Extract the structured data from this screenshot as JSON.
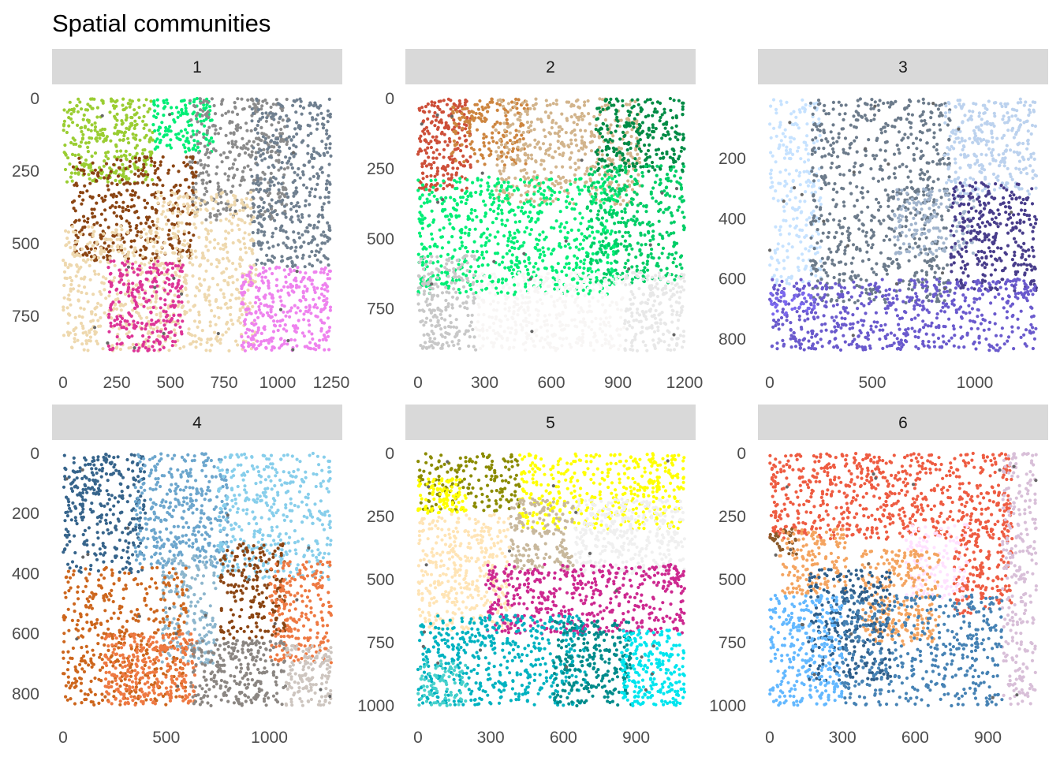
{
  "title": "Spatial communities",
  "chart_data": [
    {
      "type": "scatter",
      "panel": "1",
      "xlim": [
        0,
        1250
      ],
      "ylim": [
        0,
        870
      ],
      "x_ticks": [
        "0",
        "250",
        "500",
        "750",
        "1000",
        "1250"
      ],
      "y_ticks": [
        "0",
        "250",
        "500",
        "750"
      ],
      "y_reversed": true,
      "grid": false,
      "regions": [
        {
          "color": "#9acd32",
          "x": [
            0,
            420
          ],
          "y": [
            0,
            290
          ],
          "n": 320
        },
        {
          "color": "#00ee76",
          "x": [
            420,
            700
          ],
          "y": [
            0,
            190
          ],
          "n": 140
        },
        {
          "color": "#8b8b8b",
          "x": [
            590,
            1050
          ],
          "y": [
            0,
            420
          ],
          "n": 380
        },
        {
          "color": "#708090",
          "x": [
            880,
            1250
          ],
          "y": [
            0,
            580
          ],
          "n": 420
        },
        {
          "color": "#8b4513",
          "x": [
            40,
            620
          ],
          "y": [
            200,
            560
          ],
          "n": 380
        },
        {
          "color": "#eed8ae",
          "x": [
            0,
            440
          ],
          "y": [
            440,
            870
          ],
          "n": 360
        },
        {
          "color": "#eed8ae",
          "x": [
            430,
            900
          ],
          "y": [
            320,
            870
          ],
          "n": 460
        },
        {
          "color": "#dd3497",
          "x": [
            210,
            560
          ],
          "y": [
            560,
            870
          ],
          "n": 260
        },
        {
          "color": "#ee82ee",
          "x": [
            830,
            1250
          ],
          "y": [
            580,
            870
          ],
          "n": 340
        }
      ]
    },
    {
      "type": "scatter",
      "panel": "2",
      "xlim": [
        0,
        1200
      ],
      "ylim": [
        0,
        900
      ],
      "x_ticks": [
        "0",
        "300",
        "600",
        "900",
        "1200"
      ],
      "y_ticks": [
        "0",
        "250",
        "500",
        "750"
      ],
      "y_reversed": true,
      "grid": false,
      "regions": [
        {
          "color": "#cd4f39",
          "x": [
            0,
            240
          ],
          "y": [
            0,
            330
          ],
          "n": 220
        },
        {
          "color": "#cd853f",
          "x": [
            150,
            500
          ],
          "y": [
            0,
            240
          ],
          "n": 180
        },
        {
          "color": "#d2b48c",
          "x": [
            350,
            1000
          ],
          "y": [
            0,
            380
          ],
          "n": 480
        },
        {
          "color": "#008b45",
          "x": [
            800,
            1200
          ],
          "y": [
            0,
            260
          ],
          "n": 260
        },
        {
          "color": "#00ee76",
          "x": [
            0,
            900
          ],
          "y": [
            280,
            700
          ],
          "n": 700
        },
        {
          "color": "#00cd66",
          "x": [
            760,
            1200
          ],
          "y": [
            240,
            660
          ],
          "n": 360
        },
        {
          "color": "#c8c8c8",
          "x": [
            0,
            260
          ],
          "y": [
            560,
            900
          ],
          "n": 220
        },
        {
          "color": "#f8f6f5",
          "x": [
            260,
            930
          ],
          "y": [
            620,
            900
          ],
          "n": 420
        },
        {
          "color": "#e8e8e8",
          "x": [
            930,
            1200
          ],
          "y": [
            620,
            900
          ],
          "n": 200
        }
      ]
    },
    {
      "type": "scatter",
      "panel": "3",
      "xlim": [
        0,
        1300
      ],
      "ylim": [
        0,
        840
      ],
      "x_ticks": [
        "0",
        "500",
        "1000"
      ],
      "y_ticks": [
        "200",
        "400",
        "600",
        "800"
      ],
      "y_reversed": true,
      "grid": false,
      "regions": [
        {
          "color": "#c6e2ff",
          "x": [
            0,
            250
          ],
          "y": [
            0,
            620
          ],
          "n": 240
        },
        {
          "color": "#6c7b8b",
          "x": [
            200,
            880
          ],
          "y": [
            0,
            680
          ],
          "n": 700
        },
        {
          "color": "#a2b5cd",
          "x": [
            600,
            1000
          ],
          "y": [
            300,
            520
          ],
          "n": 160
        },
        {
          "color": "#bcd2ee",
          "x": [
            850,
            1300
          ],
          "y": [
            0,
            320
          ],
          "n": 300
        },
        {
          "color": "#483d8b",
          "x": [
            880,
            1300
          ],
          "y": [
            280,
            640
          ],
          "n": 320
        },
        {
          "color": "#6a5acd",
          "x": [
            0,
            1300
          ],
          "y": [
            600,
            840
          ],
          "n": 600
        },
        {
          "color": "#7b68ee",
          "x": [
            0,
            220
          ],
          "y": [
            640,
            720
          ],
          "n": 40
        }
      ]
    },
    {
      "type": "scatter",
      "panel": "4",
      "xlim": [
        0,
        1300
      ],
      "ylim": [
        0,
        840
      ],
      "x_ticks": [
        "0",
        "500",
        "1000"
      ],
      "y_ticks": [
        "0",
        "200",
        "400",
        "600",
        "800"
      ],
      "y_reversed": true,
      "grid": false,
      "regions": [
        {
          "color": "#36648b",
          "x": [
            0,
            400
          ],
          "y": [
            0,
            400
          ],
          "n": 320
        },
        {
          "color": "#6ca6cd",
          "x": [
            350,
            800
          ],
          "y": [
            0,
            380
          ],
          "n": 380
        },
        {
          "color": "#87ceeb",
          "x": [
            750,
            1300
          ],
          "y": [
            0,
            420
          ],
          "n": 400
        },
        {
          "color": "#8db6cd",
          "x": [
            480,
            740
          ],
          "y": [
            340,
            700
          ],
          "n": 200
        },
        {
          "color": "#8b4513",
          "x": [
            760,
            1080
          ],
          "y": [
            300,
            620
          ],
          "n": 200
        },
        {
          "color": "#cd661d",
          "x": [
            0,
            600
          ],
          "y": [
            380,
            840
          ],
          "n": 420
        },
        {
          "color": "#ee7942",
          "x": [
            1000,
            1300
          ],
          "y": [
            360,
            700
          ],
          "n": 220
        },
        {
          "color": "#ee7942",
          "x": [
            200,
            650
          ],
          "y": [
            600,
            840
          ],
          "n": 300
        },
        {
          "color": "#8b8682",
          "x": [
            620,
            1080
          ],
          "y": [
            620,
            840
          ],
          "n": 260
        },
        {
          "color": "#cdc5bf",
          "x": [
            1080,
            1300
          ],
          "y": [
            640,
            840
          ],
          "n": 140
        }
      ]
    },
    {
      "type": "scatter",
      "panel": "5",
      "xlim": [
        0,
        1100
      ],
      "ylim": [
        0,
        1000
      ],
      "x_ticks": [
        "0",
        "300",
        "600",
        "900"
      ],
      "y_ticks": [
        "0",
        "250",
        "500",
        "750",
        "1000"
      ],
      "y_reversed": true,
      "grid": false,
      "regions": [
        {
          "color": "#8b8b00",
          "x": [
            0,
            420
          ],
          "y": [
            0,
            230
          ],
          "n": 180
        },
        {
          "color": "#ffff00",
          "x": [
            0,
            200
          ],
          "y": [
            100,
            240
          ],
          "n": 100
        },
        {
          "color": "#ffff00",
          "x": [
            420,
            1100
          ],
          "y": [
            0,
            300
          ],
          "n": 420
        },
        {
          "color": "#c8b89c",
          "x": [
            380,
            640
          ],
          "y": [
            180,
            460
          ],
          "n": 180
        },
        {
          "color": "#f0f0f0",
          "x": [
            640,
            1100
          ],
          "y": [
            180,
            480
          ],
          "n": 360
        },
        {
          "color": "#ffe4b5",
          "x": [
            0,
            380
          ],
          "y": [
            240,
            700
          ],
          "n": 380
        },
        {
          "color": "#cd2990",
          "x": [
            280,
            1100
          ],
          "y": [
            440,
            720
          ],
          "n": 500
        },
        {
          "color": "#00b2c0",
          "x": [
            0,
            700
          ],
          "y": [
            640,
            1000
          ],
          "n": 480
        },
        {
          "color": "#008b8b",
          "x": [
            560,
            880
          ],
          "y": [
            660,
            1000
          ],
          "n": 260
        },
        {
          "color": "#00e5ee",
          "x": [
            840,
            1100
          ],
          "y": [
            700,
            1000
          ],
          "n": 240
        },
        {
          "color": "#48d1cc",
          "x": [
            0,
            200
          ],
          "y": [
            820,
            1000
          ],
          "n": 90
        }
      ]
    },
    {
      "type": "scatter",
      "panel": "6",
      "xlim": [
        0,
        1100
      ],
      "ylim": [
        0,
        1000
      ],
      "x_ticks": [
        "0",
        "300",
        "600",
        "900"
      ],
      "y_ticks": [
        "0",
        "250",
        "500",
        "750",
        "1000"
      ],
      "y_reversed": true,
      "grid": false,
      "regions": [
        {
          "color": "#ee5c42",
          "x": [
            0,
            1000
          ],
          "y": [
            0,
            340
          ],
          "n": 700
        },
        {
          "color": "#ee5c42",
          "x": [
            760,
            1000
          ],
          "y": [
            280,
            640
          ],
          "n": 160
        },
        {
          "color": "#d8bfd8",
          "x": [
            960,
            1100
          ],
          "y": [
            0,
            1000
          ],
          "n": 260
        },
        {
          "color": "#ffe1ff",
          "x": [
            560,
            820
          ],
          "y": [
            280,
            580
          ],
          "n": 140
        },
        {
          "color": "#8b5a2b",
          "x": [
            0,
            110
          ],
          "y": [
            300,
            400
          ],
          "n": 30
        },
        {
          "color": "#f4a460",
          "x": [
            40,
            320
          ],
          "y": [
            300,
            560
          ],
          "n": 160
        },
        {
          "color": "#f4a460",
          "x": [
            380,
            700
          ],
          "y": [
            380,
            760
          ],
          "n": 280
        },
        {
          "color": "#2f5f8b",
          "x": [
            160,
            500
          ],
          "y": [
            460,
            900
          ],
          "n": 300
        },
        {
          "color": "#63b8ff",
          "x": [
            0,
            300
          ],
          "y": [
            560,
            1000
          ],
          "n": 300
        },
        {
          "color": "#4682b4",
          "x": [
            300,
            960
          ],
          "y": [
            560,
            1000
          ],
          "n": 440
        }
      ]
    }
  ]
}
